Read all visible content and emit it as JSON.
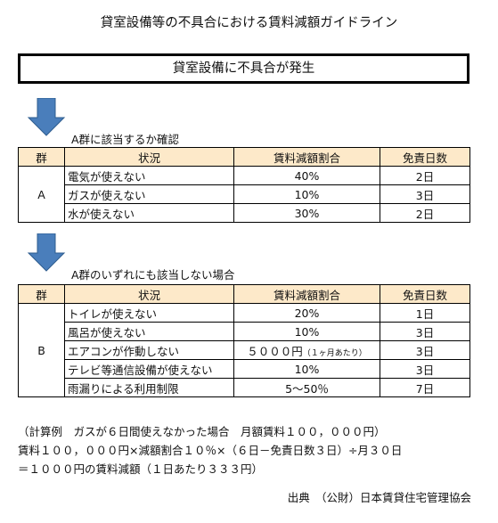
{
  "title": "貸室設備等の不具合における賃料減額ガイドライン",
  "banner": "貸室設備に不具合が発生",
  "section_a": {
    "heading": "A群に該当するか確認",
    "headers": [
      "群",
      "状況",
      "賃料減額割合",
      "免責日数"
    ],
    "group": "A",
    "rows": [
      {
        "situation": "電気が使えない",
        "rate": "40%",
        "days": "2日"
      },
      {
        "situation": "ガスが使えない",
        "rate": "10%",
        "days": "3日"
      },
      {
        "situation": "水が使えない",
        "rate": "30%",
        "days": "2日"
      }
    ]
  },
  "section_b": {
    "heading": "A群のいずれにも該当しない場合",
    "headers": [
      "群",
      "状況",
      "賃料減額割合",
      "免責日数"
    ],
    "group": "B",
    "rows": [
      {
        "situation": "トイレが使えない",
        "rate": "20%",
        "rate_note": "",
        "days": "1日"
      },
      {
        "situation": "風呂が使えない",
        "rate": "10%",
        "rate_note": "",
        "days": "3日"
      },
      {
        "situation": "エアコンが作動しない",
        "rate": "５０００円",
        "rate_note": "（１ヶ月あたり）",
        "days": "3日"
      },
      {
        "situation": "テレビ等通信設備が使えない",
        "rate": "10%",
        "rate_note": "",
        "days": "3日"
      },
      {
        "situation": "雨漏りによる利用制限",
        "rate": "5～50％",
        "rate_note": "",
        "days": "7日"
      }
    ]
  },
  "calculation": {
    "line1": "（計算例　ガスが６日間使えなかった場合　月額賃料１００，０００円）",
    "line2": "賃料１００，０００円×減額割合１０％×（６日－免責日数３日）÷月３０日",
    "line3": "＝１０００円の賃料減額（１日あたり３３３円）"
  },
  "source": "出典　（公財）日本賃貸住宅管理協会",
  "colors": {
    "header_bg": "#fde9c9",
    "arrow": "#4a7ebb"
  }
}
